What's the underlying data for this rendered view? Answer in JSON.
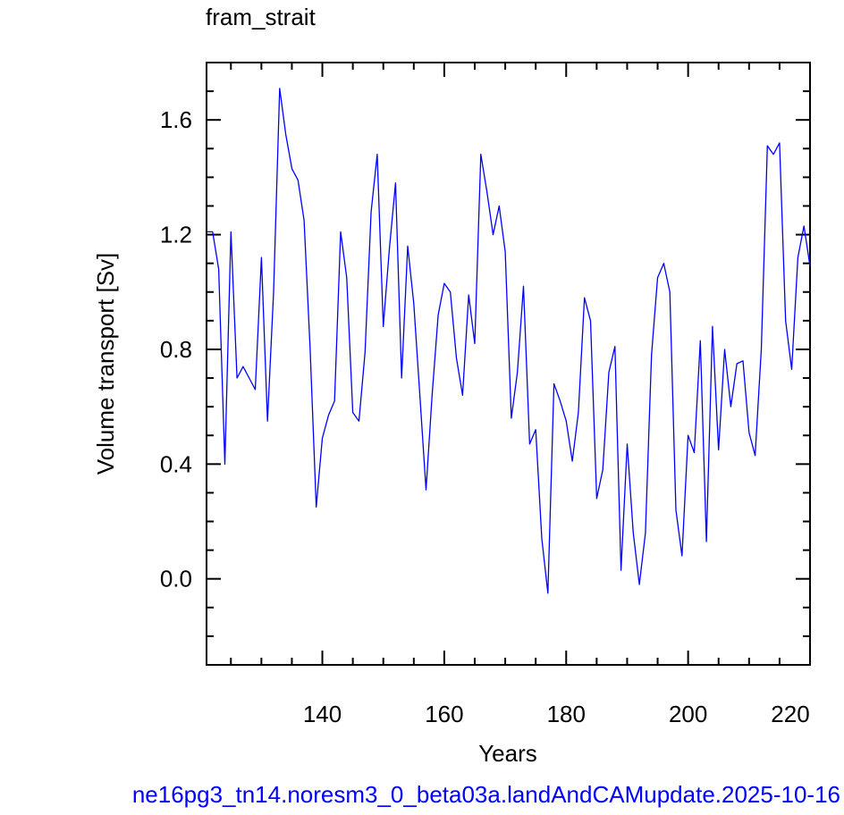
{
  "chart_data": {
    "type": "line",
    "title": "fram_strait",
    "xlabel": "Years",
    "ylabel": "Volume transport [Sv]",
    "footer": "ne16pg3_tn14.noresm3_0_beta03a.landAndCAMupdate.2025-10-16",
    "xlim": [
      121,
      220
    ],
    "ylim": [
      -0.3,
      1.8
    ],
    "xticks": [
      140,
      160,
      180,
      200,
      220
    ],
    "xtick_labels": [
      "140",
      "160",
      "180",
      "200",
      "220"
    ],
    "yticks": [
      0.0,
      0.4,
      0.8,
      1.2,
      1.6
    ],
    "ytick_labels": [
      "0.0",
      "0.4",
      "0.8",
      "1.2",
      "1.6"
    ],
    "grid": false,
    "colors": {
      "series": "#0000ff",
      "footer": "#0000ff",
      "axis": "#000000"
    },
    "series": [
      {
        "x": [
          121,
          122,
          123,
          124,
          125,
          126,
          127,
          128,
          129,
          130,
          131,
          132,
          133,
          134,
          135,
          136,
          137,
          138,
          139,
          140,
          141,
          142,
          143,
          144,
          145,
          146,
          147,
          148,
          149,
          150,
          151,
          152,
          153,
          154,
          155,
          156,
          157,
          158,
          159,
          160,
          161,
          162,
          163,
          164,
          165,
          166,
          167,
          168,
          169,
          170,
          171,
          172,
          173,
          174,
          175,
          176,
          177,
          178,
          179,
          180,
          181,
          182,
          183,
          184,
          185,
          186,
          187,
          188,
          189,
          190,
          191,
          192,
          193,
          194,
          195,
          196,
          197,
          198,
          199,
          200,
          201,
          202,
          203,
          204,
          205,
          206,
          207,
          208,
          209,
          210,
          211,
          212,
          213,
          214,
          215,
          216,
          217,
          218,
          219,
          220
        ],
        "values": [
          1.21,
          1.21,
          1.08,
          0.4,
          1.21,
          0.7,
          0.74,
          0.7,
          0.66,
          1.12,
          0.55,
          1.0,
          1.71,
          1.55,
          1.43,
          1.39,
          1.25,
          0.8,
          0.25,
          0.49,
          0.57,
          0.62,
          1.21,
          1.05,
          0.58,
          0.55,
          0.79,
          1.28,
          1.48,
          0.88,
          1.15,
          1.38,
          0.7,
          1.16,
          0.96,
          0.64,
          0.31,
          0.64,
          0.92,
          1.03,
          1.0,
          0.77,
          0.64,
          0.99,
          0.82,
          1.48,
          1.35,
          1.2,
          1.3,
          1.14,
          0.56,
          0.72,
          1.02,
          0.47,
          0.52,
          0.14,
          -0.05,
          0.68,
          0.62,
          0.55,
          0.41,
          0.58,
          0.98,
          0.9,
          0.28,
          0.38,
          0.72,
          0.81,
          0.03,
          0.47,
          0.16,
          -0.02,
          0.16,
          0.78,
          1.05,
          1.1,
          1.0,
          0.24,
          0.08,
          0.5,
          0.44,
          0.83,
          0.13,
          0.88,
          0.45,
          0.8,
          0.6,
          0.75,
          0.76,
          0.51,
          0.43,
          0.8,
          1.51,
          1.48,
          1.52,
          0.9,
          0.73,
          1.12,
          1.23,
          1.09
        ]
      }
    ]
  }
}
